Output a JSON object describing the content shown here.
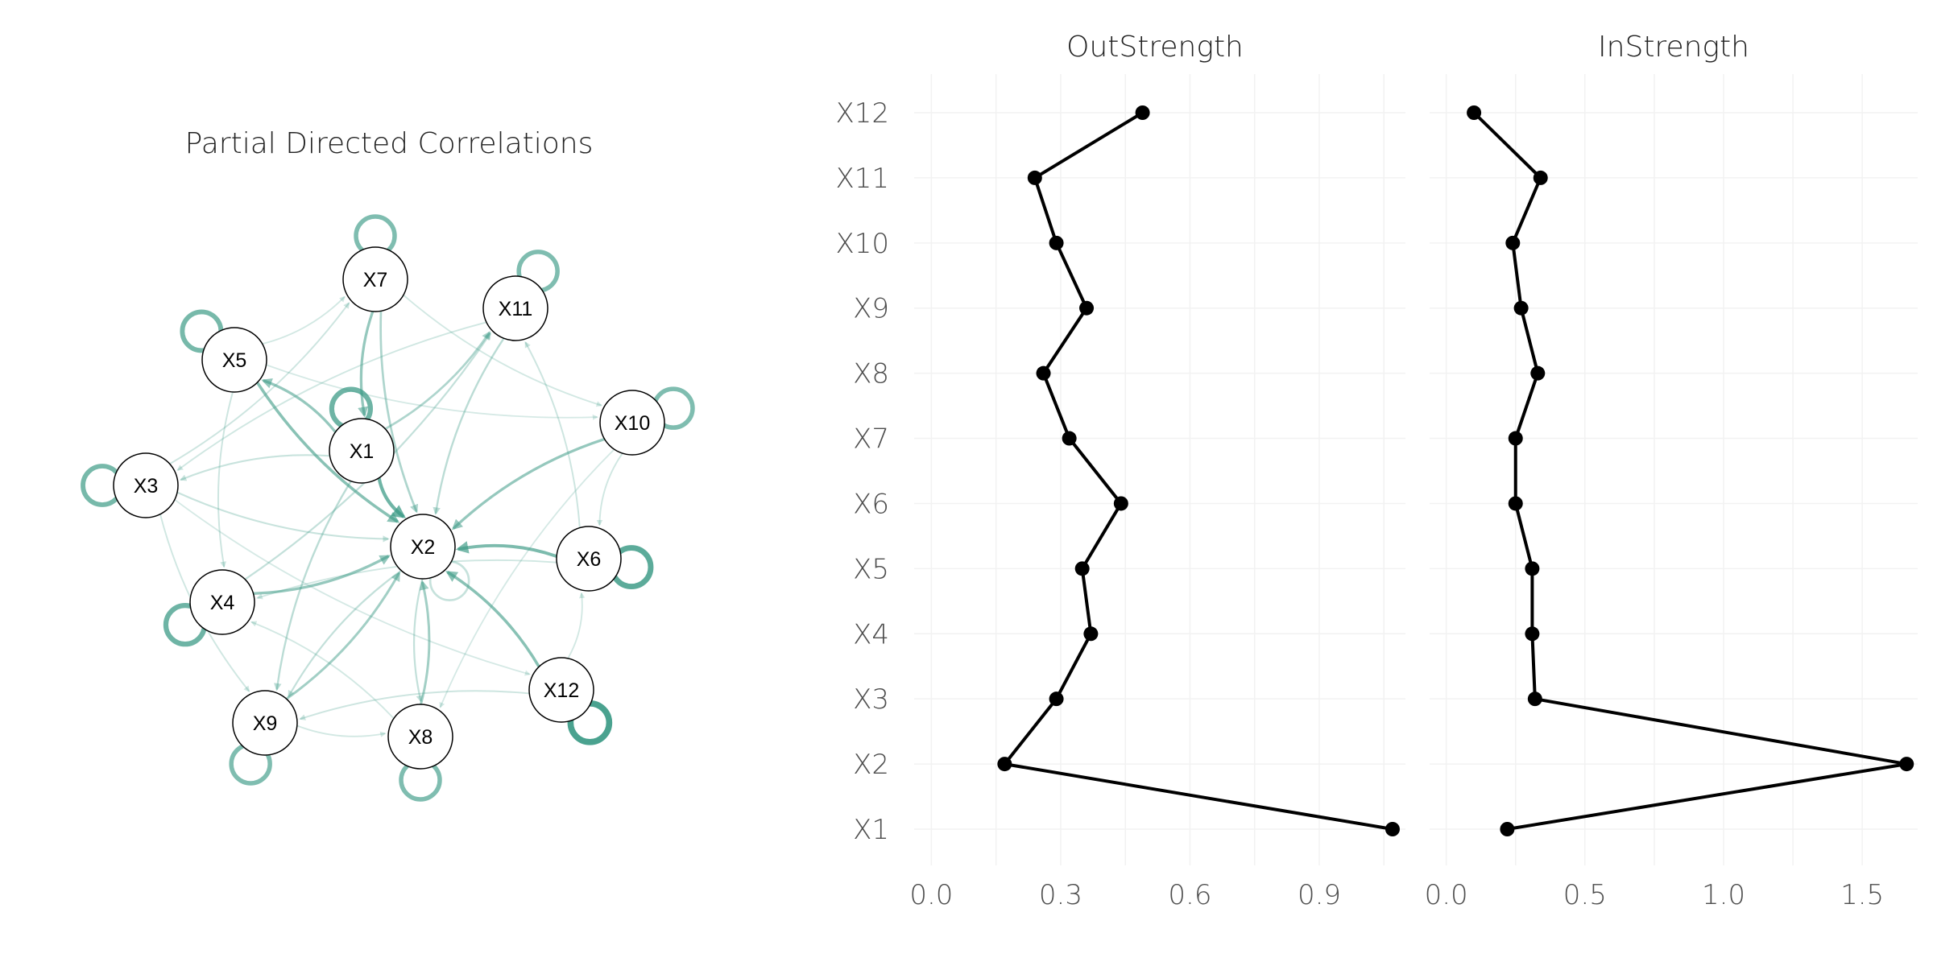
{
  "colors": {
    "edge": "#3b9a85",
    "line": "#000000",
    "node_fill": "#ffffff",
    "node_stroke": "#000000"
  },
  "network": {
    "title": "Partial Directed Correlations",
    "nodes": [
      "X1",
      "X2",
      "X3",
      "X4",
      "X5",
      "X6",
      "X7",
      "X8",
      "X9",
      "X10",
      "X11",
      "X12"
    ],
    "self_loops": {
      "X1": 0.6,
      "X3": 0.55,
      "X4": 0.6,
      "X5": 0.55,
      "X6": 0.7,
      "X7": 0.5,
      "X8": 0.5,
      "X9": 0.5,
      "X10": 0.5,
      "X11": 0.5,
      "X12": 0.8,
      "X2": 0.1
    },
    "edges": [
      {
        "from": "X1",
        "to": "X2",
        "w": 0.45
      },
      {
        "from": "X1",
        "to": "X5",
        "w": 0.3
      },
      {
        "from": "X1",
        "to": "X11",
        "w": 0.2
      },
      {
        "from": "X5",
        "to": "X2",
        "w": 0.35
      },
      {
        "from": "X6",
        "to": "X2",
        "w": 0.4
      },
      {
        "from": "X10",
        "to": "X2",
        "w": 0.3
      },
      {
        "from": "X12",
        "to": "X2",
        "w": 0.35
      },
      {
        "from": "X4",
        "to": "X2",
        "w": 0.3
      },
      {
        "from": "X9",
        "to": "X2",
        "w": 0.25
      },
      {
        "from": "X8",
        "to": "X2",
        "w": 0.25
      },
      {
        "from": "X7",
        "to": "X1",
        "w": 0.3
      },
      {
        "from": "X7",
        "to": "X2",
        "w": 0.2
      },
      {
        "from": "X11",
        "to": "X2",
        "w": 0.15
      },
      {
        "from": "X3",
        "to": "X2",
        "w": 0.1
      },
      {
        "from": "X1",
        "to": "X9",
        "w": 0.15
      },
      {
        "from": "X2",
        "to": "X8",
        "w": 0.12
      },
      {
        "from": "X2",
        "to": "X9",
        "w": 0.12
      },
      {
        "from": "X1",
        "to": "X3",
        "w": 0.1
      },
      {
        "from": "X4",
        "to": "X11",
        "w": 0.12
      },
      {
        "from": "X3",
        "to": "X7",
        "w": 0.08
      },
      {
        "from": "X5",
        "to": "X4",
        "w": 0.08
      },
      {
        "from": "X3",
        "to": "X9",
        "w": 0.07
      },
      {
        "from": "X6",
        "to": "X11",
        "w": 0.08
      },
      {
        "from": "X10",
        "to": "X6",
        "w": 0.07
      },
      {
        "from": "X12",
        "to": "X9",
        "w": 0.08
      },
      {
        "from": "X8",
        "to": "X4",
        "w": 0.06
      },
      {
        "from": "X6",
        "to": "X4",
        "w": 0.07
      },
      {
        "from": "X11",
        "to": "X3",
        "w": 0.07
      },
      {
        "from": "X7",
        "to": "X10",
        "w": 0.06
      },
      {
        "from": "X5",
        "to": "X7",
        "w": 0.06
      },
      {
        "from": "X12",
        "to": "X6",
        "w": 0.06
      },
      {
        "from": "X9",
        "to": "X8",
        "w": 0.06
      },
      {
        "from": "X3",
        "to": "X12",
        "w": 0.05
      },
      {
        "from": "X10",
        "to": "X8",
        "w": 0.05
      },
      {
        "from": "X5",
        "to": "X10",
        "w": 0.05
      }
    ]
  },
  "chart_data": [
    {
      "type": "line",
      "title": "OutStrength",
      "categories": [
        "X1",
        "X2",
        "X3",
        "X4",
        "X5",
        "X6",
        "X7",
        "X8",
        "X9",
        "X10",
        "X11",
        "X12"
      ],
      "values": [
        1.07,
        0.17,
        0.29,
        0.37,
        0.35,
        0.44,
        0.32,
        0.26,
        0.36,
        0.29,
        0.24,
        0.49
      ],
      "xlim": [
        -0.04,
        1.1
      ],
      "xticks": [
        0.0,
        0.3,
        0.6,
        0.9
      ],
      "xtick_labels": [
        "0.0",
        "0.3",
        "0.6",
        "0.9"
      ],
      "orientation": "horizontal-values",
      "grid": true
    },
    {
      "type": "line",
      "title": "InStrength",
      "categories": [
        "X1",
        "X2",
        "X3",
        "X4",
        "X5",
        "X6",
        "X7",
        "X8",
        "X9",
        "X10",
        "X11",
        "X12"
      ],
      "values": [
        0.22,
        1.66,
        0.32,
        0.31,
        0.31,
        0.25,
        0.25,
        0.33,
        0.27,
        0.24,
        0.34,
        0.1
      ],
      "xlim": [
        -0.06,
        1.7
      ],
      "xticks": [
        0.0,
        0.5,
        1.0,
        1.5
      ],
      "xtick_labels": [
        "0.0",
        "0.5",
        "1.0",
        "1.5"
      ],
      "orientation": "horizontal-values",
      "grid": true
    }
  ]
}
